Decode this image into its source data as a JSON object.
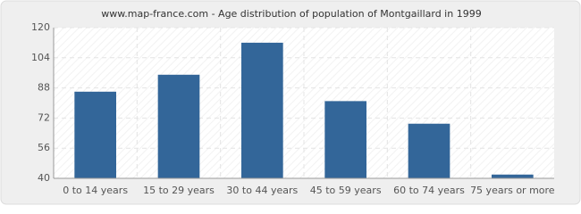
{
  "chart_data": {
    "type": "bar",
    "title": "www.map-france.com - Age distribution of population of Montgaillard in 1999",
    "categories": [
      "0 to 14 years",
      "15 to 29 years",
      "30 to 44 years",
      "45 to 59 years",
      "60 to 74 years",
      "75 years or more"
    ],
    "values": [
      86,
      95,
      112,
      81,
      69,
      42
    ],
    "color": "#336699",
    "ylim": [
      40,
      120
    ],
    "yticks": [
      40,
      56,
      72,
      88,
      104,
      120
    ],
    "grid": true
  }
}
